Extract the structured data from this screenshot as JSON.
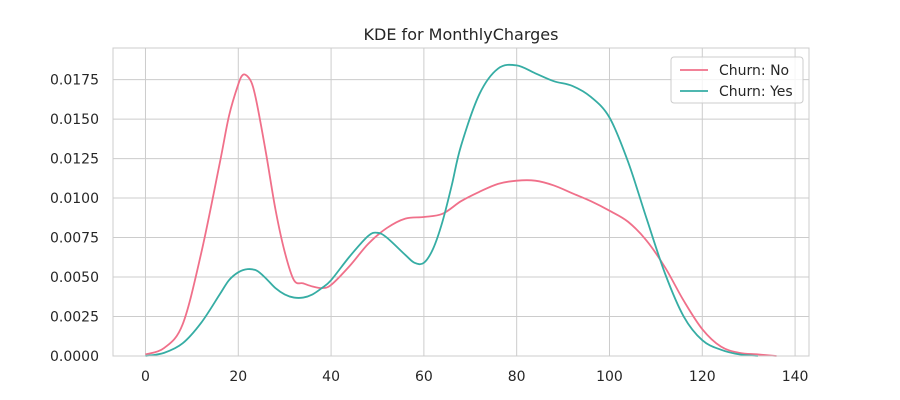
{
  "chart_data": {
    "type": "line",
    "title": "KDE for MonthlyCharges",
    "xlabel": "",
    "ylabel": "",
    "xlim": [
      -7,
      143
    ],
    "ylim": [
      0,
      0.0195
    ],
    "xticks": [
      0,
      20,
      40,
      60,
      80,
      100,
      120,
      140
    ],
    "yticks": [
      0.0,
      0.0025,
      0.005,
      0.0075,
      0.01,
      0.0125,
      0.015,
      0.0175
    ],
    "ytick_labels": [
      "0.0000",
      "0.0025",
      "0.0050",
      "0.0075",
      "0.0100",
      "0.0125",
      "0.0150",
      "0.0175"
    ],
    "grid": true,
    "legend_position": "top-right",
    "series": [
      {
        "name": "Churn: No",
        "color": "#f0708a",
        "x": [
          0,
          4,
          8,
          12,
          16,
          18,
          20,
          21,
          22,
          23,
          24,
          26,
          28,
          30,
          32,
          34,
          36,
          38,
          40,
          44,
          48,
          52,
          56,
          60,
          64,
          68,
          72,
          76,
          80,
          84,
          88,
          92,
          96,
          100,
          104,
          108,
          112,
          116,
          120,
          124,
          128,
          132,
          136
        ],
        "y": [
          0.0001,
          0.0005,
          0.002,
          0.0065,
          0.0122,
          0.0152,
          0.0172,
          0.0178,
          0.0177,
          0.0172,
          0.016,
          0.0128,
          0.0093,
          0.0066,
          0.0048,
          0.0046,
          0.0044,
          0.0043,
          0.0045,
          0.0057,
          0.0071,
          0.0081,
          0.0087,
          0.0088,
          0.009,
          0.0098,
          0.0104,
          0.0109,
          0.0111,
          0.0111,
          0.0108,
          0.0103,
          0.0098,
          0.0092,
          0.0085,
          0.0073,
          0.0056,
          0.0035,
          0.0017,
          0.0006,
          0.0002,
          0.0001,
          0.0
        ]
      },
      {
        "name": "Churn: Yes",
        "color": "#36ada4",
        "x": [
          0,
          4,
          8,
          12,
          16,
          18,
          20,
          22,
          24,
          26,
          28,
          30,
          32,
          34,
          36,
          38,
          40,
          44,
          48,
          50,
          52,
          56,
          58,
          60,
          62,
          64,
          66,
          68,
          72,
          76,
          80,
          84,
          88,
          92,
          96,
          100,
          104,
          108,
          112,
          116,
          120,
          124,
          128,
          132
        ],
        "y": [
          0.0,
          0.0002,
          0.0008,
          0.0021,
          0.0039,
          0.0048,
          0.0053,
          0.0055,
          0.0054,
          0.0049,
          0.0043,
          0.0039,
          0.0037,
          0.0037,
          0.0039,
          0.0043,
          0.0048,
          0.0063,
          0.0076,
          0.0078,
          0.0075,
          0.0064,
          0.0059,
          0.0059,
          0.0068,
          0.0085,
          0.0108,
          0.0133,
          0.0166,
          0.0182,
          0.0184,
          0.0179,
          0.0174,
          0.0171,
          0.0164,
          0.0151,
          0.0123,
          0.0087,
          0.0052,
          0.0025,
          0.001,
          0.0004,
          0.0001,
          0.0
        ]
      }
    ]
  }
}
